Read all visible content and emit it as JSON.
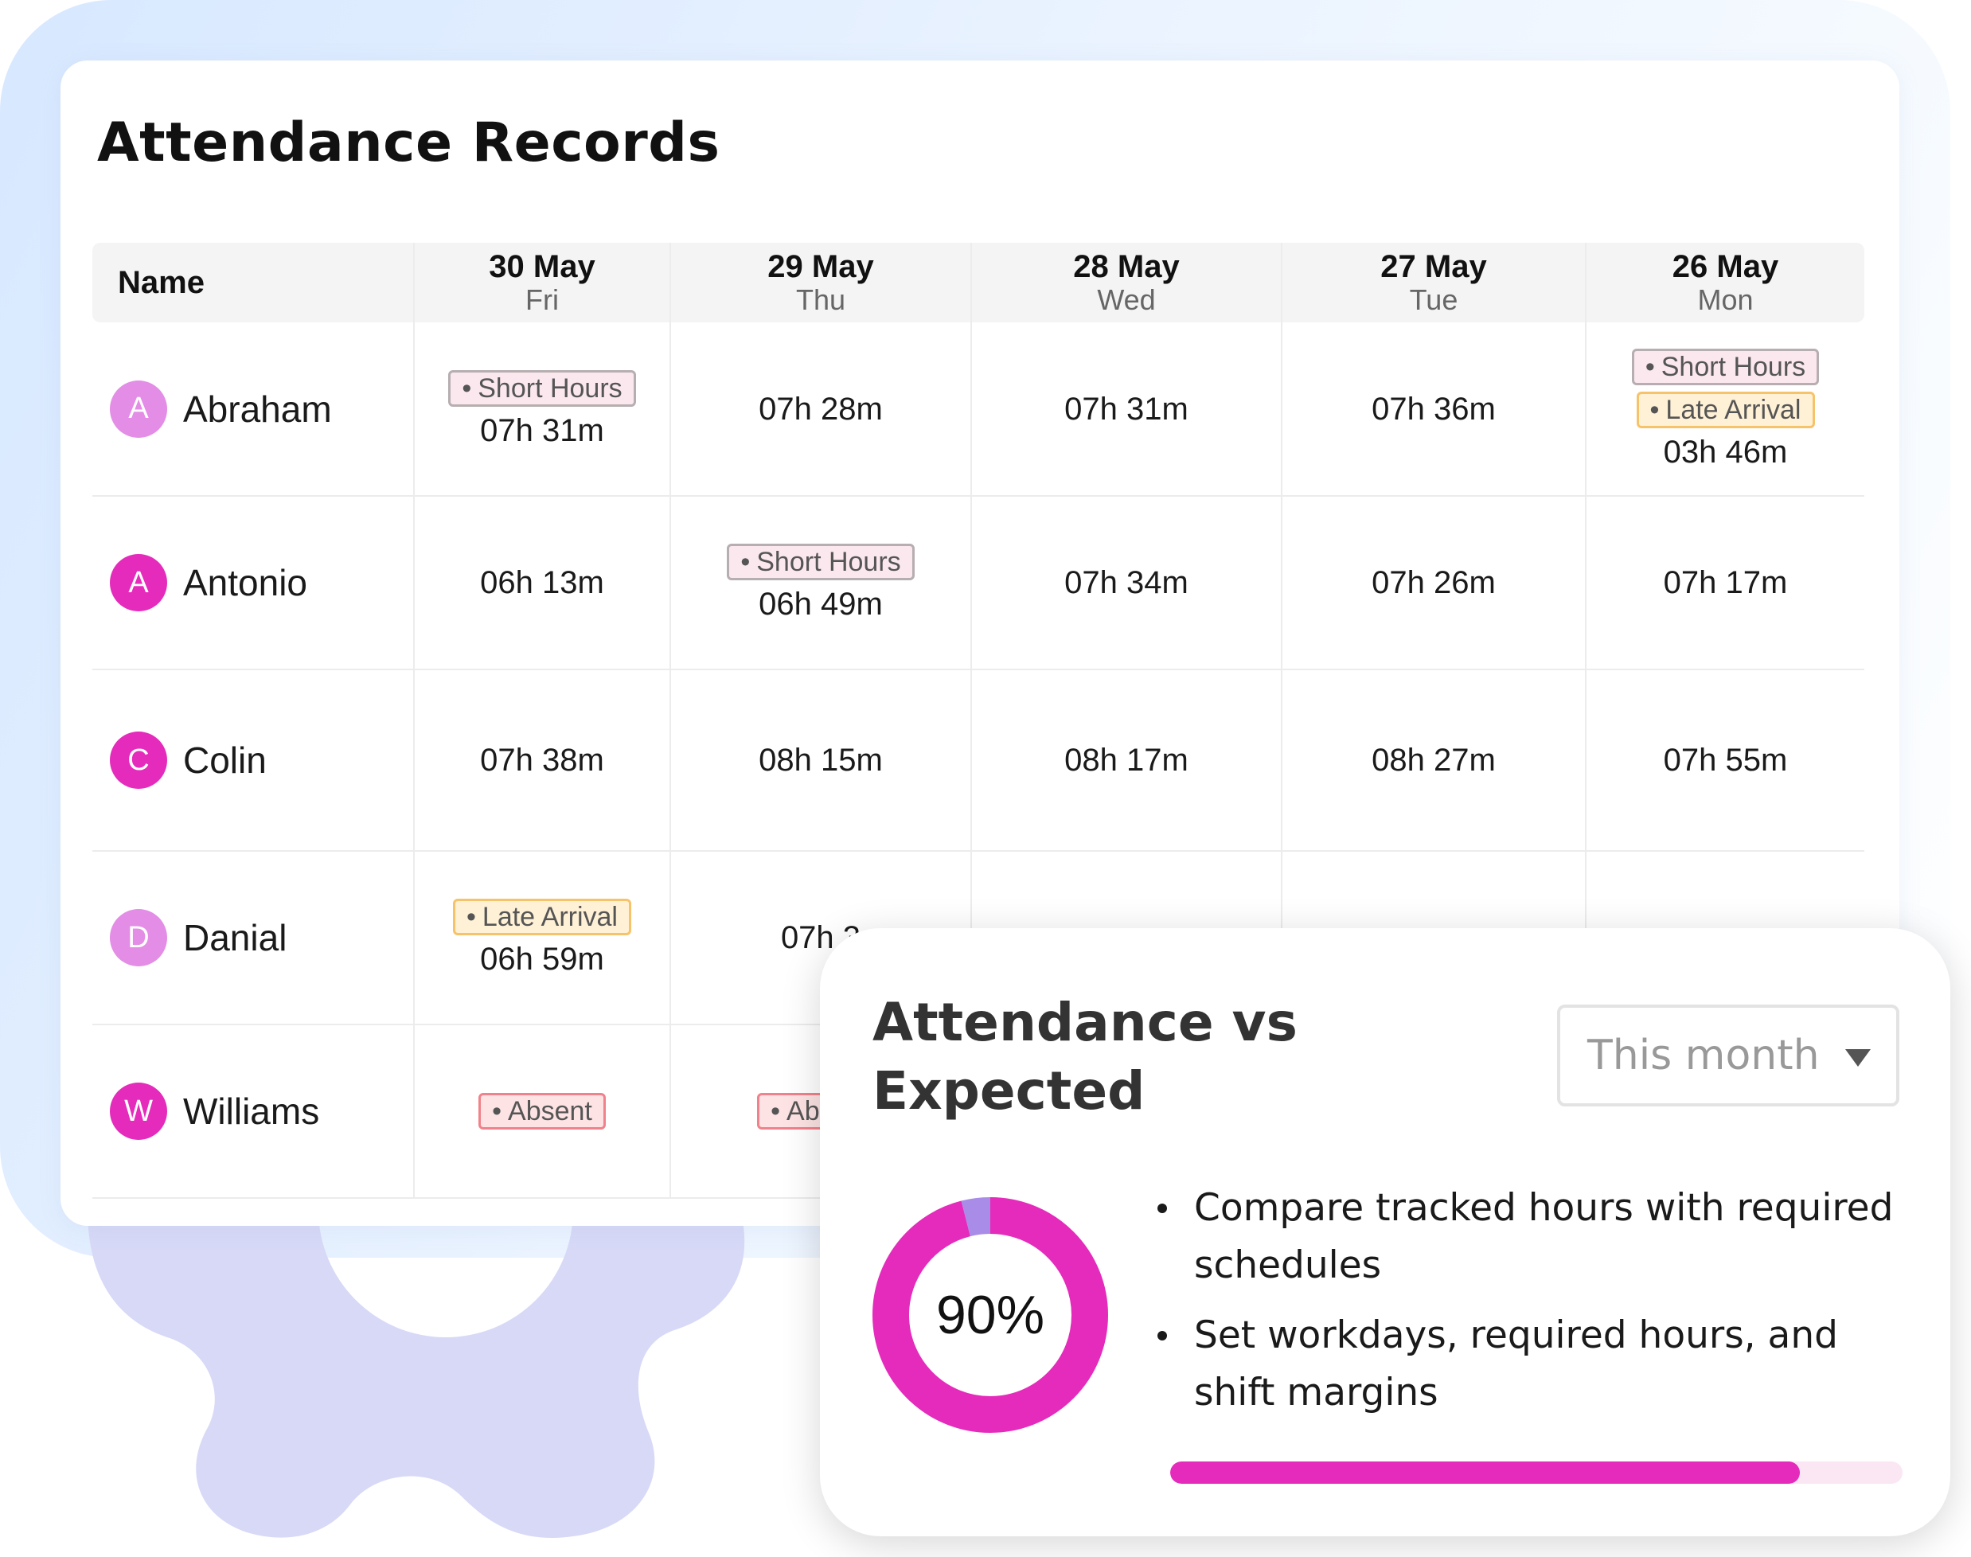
{
  "colors": {
    "accent_magenta": "#e52bbb",
    "accent_purple": "#a98ce8",
    "avatar_light": "#e38de6",
    "gear": "#d7d9f7",
    "progress_track": "#fbe6f4"
  },
  "records": {
    "title": "Attendance Records",
    "name_header": "Name",
    "columns": [
      {
        "date": "30 May",
        "day": "Fri"
      },
      {
        "date": "29 May",
        "day": "Thu"
      },
      {
        "date": "28 May",
        "day": "Wed"
      },
      {
        "date": "27 May",
        "day": "Tue"
      },
      {
        "date": "26 May",
        "day": "Mon"
      }
    ],
    "rows": [
      {
        "name": "Abraham",
        "initial": "A",
        "avatar_color": "#e38de6",
        "cells": [
          {
            "tags": [
              {
                "label": "Short Hours",
                "kind": "short"
              }
            ],
            "time": "07h 31m"
          },
          {
            "tags": [],
            "time": "07h 28m"
          },
          {
            "tags": [],
            "time": "07h 31m"
          },
          {
            "tags": [],
            "time": "07h 36m"
          },
          {
            "tags": [
              {
                "label": "Short Hours",
                "kind": "short"
              },
              {
                "label": "Late Arrival",
                "kind": "late"
              }
            ],
            "time": "03h 46m"
          }
        ]
      },
      {
        "name": "Antonio",
        "initial": "A",
        "avatar_color": "#e52bbb",
        "cells": [
          {
            "tags": [],
            "time": "06h 13m"
          },
          {
            "tags": [
              {
                "label": "Short Hours",
                "kind": "short"
              }
            ],
            "time": "06h 49m"
          },
          {
            "tags": [],
            "time": "07h 34m"
          },
          {
            "tags": [],
            "time": "07h 26m"
          },
          {
            "tags": [],
            "time": "07h 17m"
          }
        ]
      },
      {
        "name": "Colin",
        "initial": "C",
        "avatar_color": "#e52bbb",
        "cells": [
          {
            "tags": [],
            "time": "07h 38m"
          },
          {
            "tags": [],
            "time": "08h 15m"
          },
          {
            "tags": [],
            "time": "08h 17m"
          },
          {
            "tags": [],
            "time": "08h 27m"
          },
          {
            "tags": [],
            "time": "07h 55m"
          }
        ]
      },
      {
        "name": "Danial",
        "initial": "D",
        "avatar_color": "#e38de6",
        "cells": [
          {
            "tags": [
              {
                "label": "Late Arrival",
                "kind": "late"
              }
            ],
            "time": "06h 59m"
          },
          {
            "tags": [],
            "time": "07h 3"
          },
          {
            "tags": [],
            "time": ""
          },
          {
            "tags": [],
            "time": ""
          },
          {
            "tags": [],
            "time": ""
          }
        ]
      },
      {
        "name": "Williams",
        "initial": "W",
        "avatar_color": "#e52bbb",
        "cells": [
          {
            "tags": [
              {
                "label": "Absent",
                "kind": "absent"
              }
            ],
            "time": ""
          },
          {
            "tags": [
              {
                "label": "Absent",
                "kind": "absent"
              }
            ],
            "time": ""
          },
          {
            "tags": [],
            "time": ""
          },
          {
            "tags": [],
            "time": ""
          },
          {
            "tags": [],
            "time": ""
          }
        ]
      }
    ]
  },
  "summary": {
    "title": "Attendance vs Expected",
    "period": "This month",
    "percent_label": "90%",
    "percent_value": 0.9,
    "purple_segment": 0.04,
    "bullets": [
      "Compare tracked hours with required schedules",
      "Set workdays, required hours, and shift margins"
    ],
    "progress_value": 0.86
  }
}
